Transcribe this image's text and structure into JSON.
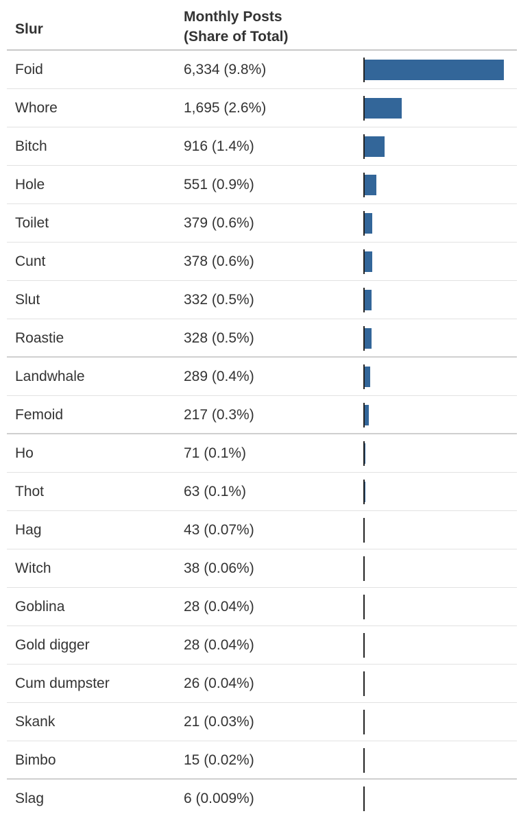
{
  "columns": {
    "slur": "Slur",
    "posts_line1": "Monthly Posts",
    "posts_line2": "(Share of Total)"
  },
  "colors": {
    "bar": "#336699",
    "axis": "#222222",
    "row_divider": "#e2e2e2",
    "group_divider": "#cfcfcf"
  },
  "chart_data": {
    "type": "bar",
    "orientation": "horizontal",
    "title": "",
    "xlabel": "",
    "ylabel": "",
    "xlim": [
      0,
      6334
    ],
    "grid": false,
    "legend": "none",
    "categories": [
      "Foid",
      "Whore",
      "Bitch",
      "Hole",
      "Toilet",
      "Cunt",
      "Slut",
      "Roastie",
      "Landwhale",
      "Femoid",
      "Ho",
      "Thot",
      "Hag",
      "Witch",
      "Goblina",
      "Gold digger",
      "Cum dumpster",
      "Skank",
      "Bimbo",
      "Slag"
    ],
    "values": [
      6334,
      1695,
      916,
      551,
      379,
      378,
      332,
      328,
      289,
      217,
      71,
      63,
      43,
      38,
      28,
      28,
      26,
      21,
      15,
      6
    ],
    "labels": [
      "6,334 (9.8%)",
      "1,695 (2.6%)",
      "916 (1.4%)",
      "551 (0.9%)",
      "379 (0.6%)",
      "378 (0.6%)",
      "332 (0.5%)",
      "328 (0.5%)",
      "289 (0.4%)",
      "217 (0.3%)",
      "71 (0.1%)",
      "63 (0.1%)",
      "43 (0.07%)",
      "38 (0.06%)",
      "28 (0.04%)",
      "28 (0.04%)",
      "26 (0.04%)",
      "21 (0.03%)",
      "15 (0.02%)",
      "6 (0.009%)"
    ]
  }
}
